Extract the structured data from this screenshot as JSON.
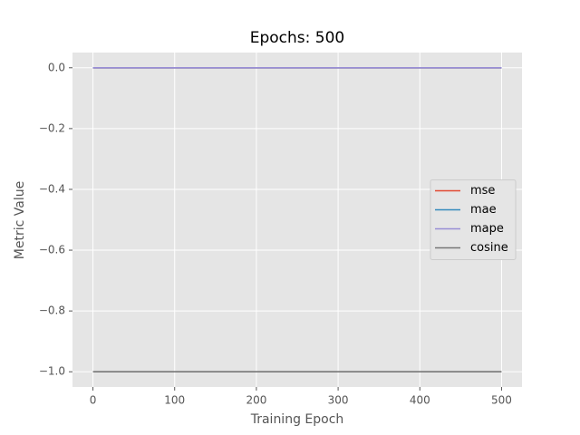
{
  "chart_data": {
    "type": "line",
    "title": "Epochs: 500",
    "xlabel": "Training Epoch",
    "ylabel": "Metric Value",
    "x": [
      0,
      500
    ],
    "series": [
      {
        "name": "mse",
        "color": "#E24A33",
        "values": [
          0,
          0
        ]
      },
      {
        "name": "mae",
        "color": "#348ABD",
        "values": [
          0,
          0
        ]
      },
      {
        "name": "mape",
        "color": "#988ED5",
        "values": [
          0,
          0
        ]
      },
      {
        "name": "cosine",
        "color": "#777777",
        "values": [
          -1,
          -1
        ]
      }
    ],
    "xlim": [
      -25,
      525
    ],
    "xticks": [
      0,
      100,
      200,
      300,
      400,
      500
    ],
    "ylim": [
      -1.05,
      0.05
    ],
    "yticks": [
      {
        "value": -1,
        "label": "−1.0"
      },
      {
        "value": -0.8,
        "label": "−0.8"
      },
      {
        "value": -0.6,
        "label": "−0.6"
      },
      {
        "value": -0.4,
        "label": "−0.4"
      },
      {
        "value": -0.2,
        "label": "−0.2"
      },
      {
        "value": 0,
        "label": "0.0"
      }
    ],
    "grid": true,
    "legend": "center right",
    "background": "#E5E5E5"
  }
}
